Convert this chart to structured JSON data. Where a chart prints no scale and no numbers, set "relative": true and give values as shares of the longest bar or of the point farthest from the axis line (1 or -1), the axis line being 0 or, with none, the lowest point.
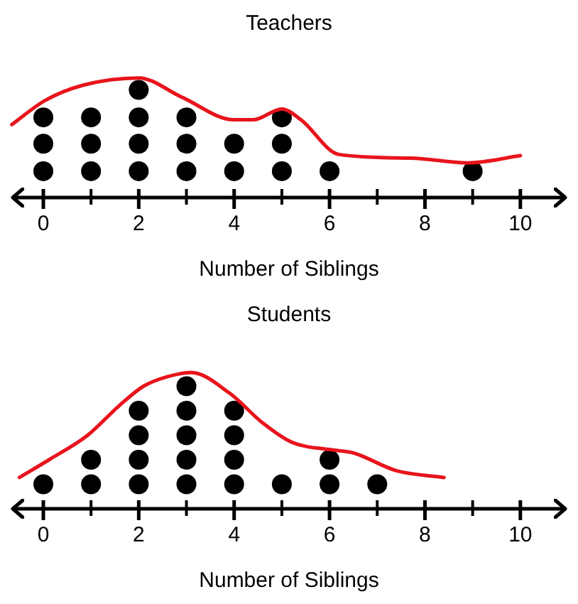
{
  "chart_data": [
    {
      "type": "scatter",
      "title": "Teachers",
      "xlabel": "Number of Siblings",
      "xlim": [
        -0.7,
        11
      ],
      "xticks": [
        0,
        {
          "value": 1,
          "label": null
        },
        2,
        {
          "value": 3,
          "label": null
        },
        4,
        {
          "value": 5,
          "label": null
        },
        6,
        {
          "value": 7,
          "label": null
        },
        8,
        {
          "value": 9,
          "label": null
        },
        10
      ],
      "relative": true,
      "tick_labels": "x",
      "grid": false,
      "series": [
        {
          "type": "scatter",
          "color": "#000000",
          "marker": "circle",
          "x": [
            0,
            0,
            0,
            1,
            1,
            1,
            2,
            2,
            2,
            2,
            3,
            3,
            3,
            4,
            4,
            5,
            5,
            5,
            6,
            9
          ],
          "values": [
            0.22,
            0.45,
            0.67,
            0.22,
            0.45,
            0.67,
            0.22,
            0.45,
            0.67,
            0.9,
            0.22,
            0.45,
            0.67,
            0.22,
            0.45,
            0.22,
            0.45,
            0.67,
            0.22,
            0.22
          ]
        },
        {
          "type": "line",
          "color": "#e8141c",
          "marker": "none",
          "x": [
            -0.66,
            0.03,
            0.84,
            2.0,
            2.9,
            4.0,
            4.4,
            5.0,
            5.4,
            6.2,
            7.7,
            8.9,
            10
          ],
          "values": [
            0.61,
            0.81,
            0.94,
            1,
            0.84,
            0.65,
            0.65,
            0.74,
            0.65,
            0.36,
            0.33,
            0.29,
            0.35
          ]
        }
      ]
    },
    {
      "type": "scatter",
      "title": "Students",
      "xlabel": "Number of Siblings",
      "xlim": [
        -0.7,
        11
      ],
      "xticks": [
        0,
        {
          "value": 1,
          "label": null
        },
        2,
        {
          "value": 3,
          "label": null
        },
        4,
        {
          "value": 5,
          "label": null
        },
        6,
        {
          "value": 7,
          "label": null
        },
        8,
        {
          "value": 9,
          "label": null
        },
        10
      ],
      "relative": true,
      "tick_labels": "x",
      "grid": false,
      "series": [
        {
          "type": "scatter",
          "color": "#000000",
          "marker": "circle",
          "x": [
            0,
            1,
            1,
            2,
            2,
            2,
            2,
            3,
            3,
            3,
            3,
            3,
            4,
            4,
            4,
            4,
            5,
            6,
            6,
            7
          ],
          "values": [
            0.18,
            0.18,
            0.36,
            0.18,
            0.36,
            0.54,
            0.72,
            0.18,
            0.36,
            0.54,
            0.72,
            0.9,
            0.18,
            0.36,
            0.54,
            0.72,
            0.18,
            0.18,
            0.36,
            0.18
          ]
        },
        {
          "type": "line",
          "color": "#e8141c",
          "marker": "none",
          "x": [
            -0.5,
            0.12,
            0.93,
            1.6,
            2.1,
            2.6,
            3.1,
            3.9,
            4.6,
            5.2,
            6.1,
            6.5,
            7.4,
            8.4
          ],
          "values": [
            0.23,
            0.36,
            0.54,
            0.76,
            0.9,
            0.97,
            1,
            0.85,
            0.63,
            0.49,
            0.43,
            0.41,
            0.28,
            0.23
          ]
        }
      ]
    }
  ]
}
